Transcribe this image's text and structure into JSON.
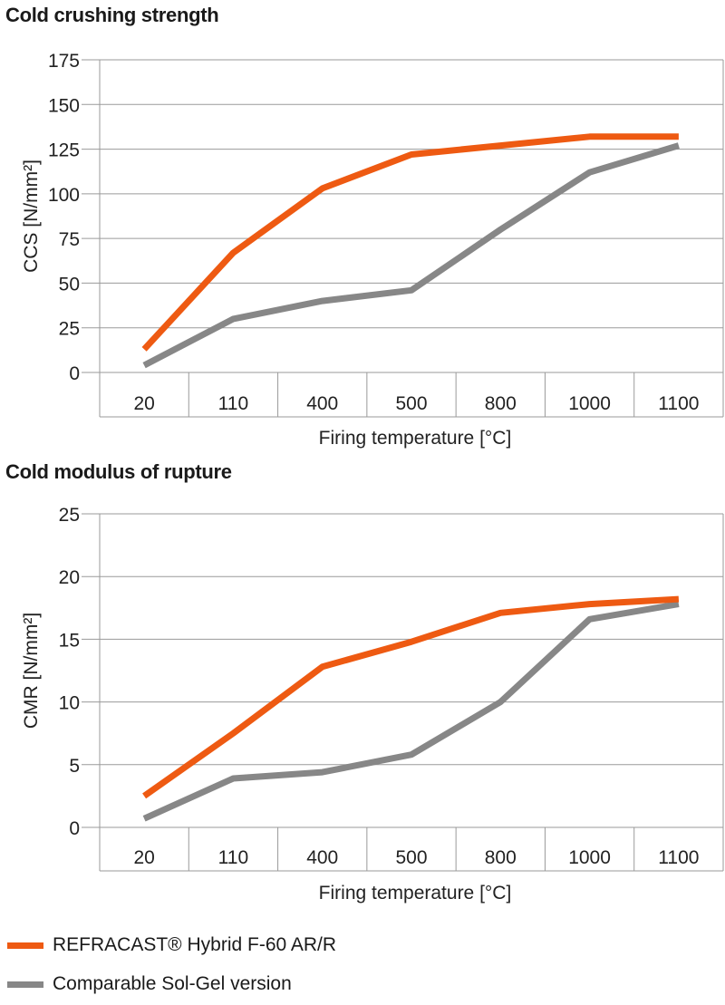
{
  "chart_data": [
    {
      "type": "line",
      "title": "Cold crushing strength",
      "categories": [
        "20",
        "110",
        "400",
        "500",
        "800",
        "1000",
        "1100"
      ],
      "xlabel": "Firing temperature  [°C]",
      "ylabel": "CCS [N/mm²]",
      "ylim": [
        0,
        175
      ],
      "yticks": [
        0,
        25,
        50,
        75,
        100,
        125,
        150,
        175
      ],
      "grid": true,
      "series": [
        {
          "name": "REFRACAST® Hybrid F-60 AR/R",
          "color": "#ee5a12",
          "values": [
            13,
            67,
            103,
            122,
            127,
            132,
            132
          ]
        },
        {
          "name": "Comparable Sol-Gel version",
          "color": "#878787",
          "values": [
            4,
            30,
            40,
            46,
            80,
            112,
            127
          ]
        }
      ]
    },
    {
      "type": "line",
      "title": "Cold modulus of rupture",
      "categories": [
        "20",
        "110",
        "400",
        "500",
        "800",
        "1000",
        "1100"
      ],
      "xlabel": "Firing temperature  [°C]",
      "ylabel": "CMR [N/mm²]",
      "ylim": [
        0,
        25
      ],
      "yticks": [
        0,
        5,
        10,
        15,
        20,
        25
      ],
      "grid": true,
      "series": [
        {
          "name": "REFRACAST® Hybrid F-60 AR/R",
          "color": "#ee5a12",
          "values": [
            2.5,
            7.5,
            12.8,
            14.8,
            17.1,
            17.8,
            18.2
          ]
        },
        {
          "name": "Comparable Sol-Gel version",
          "color": "#878787",
          "values": [
            0.7,
            3.9,
            4.4,
            5.8,
            10.0,
            16.6,
            17.8
          ]
        }
      ]
    }
  ],
  "legend": [
    {
      "label": "REFRACAST® Hybrid F-60 AR/R",
      "color": "#ee5a12"
    },
    {
      "label": "Comparable Sol-Gel version",
      "color": "#878787"
    }
  ]
}
